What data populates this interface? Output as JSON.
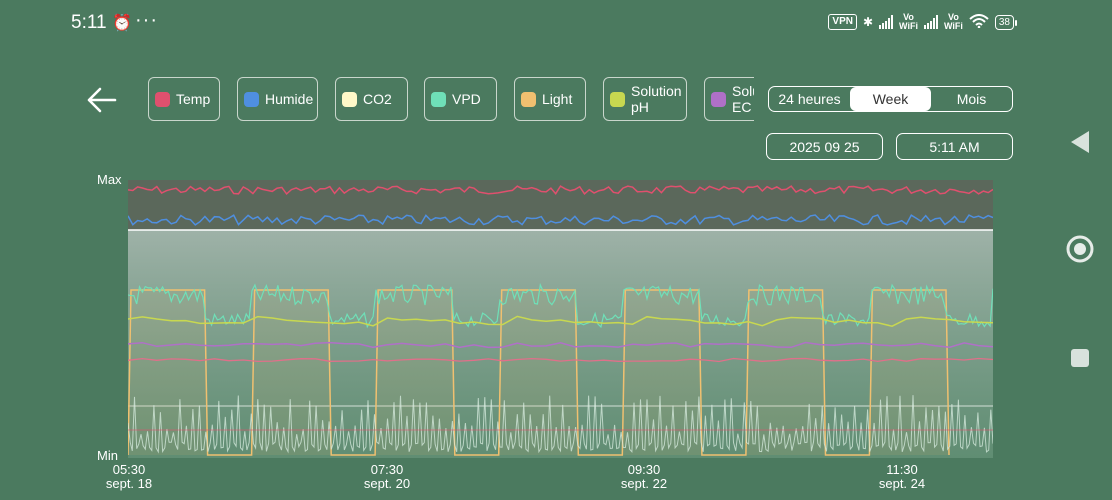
{
  "status_bar": {
    "time": "5:11",
    "alarm_icon": "alarm-icon",
    "more": "···",
    "vpn": "VPN",
    "vo_wifi_1": "Vo\nWiFi",
    "vo_wifi_2": "Vo\nWiFi",
    "battery": "38"
  },
  "legend": [
    {
      "label": "Temp",
      "color": "#e0506e"
    },
    {
      "label": "Humide",
      "color": "#4f8fe0"
    },
    {
      "label": "CO2",
      "color": "#fff8c8"
    },
    {
      "label": "VPD",
      "color": "#6fe0b8"
    },
    {
      "label": "Light",
      "color": "#f0c070"
    },
    {
      "label": "Solution pH",
      "color": "#c8d850"
    },
    {
      "label": "Solution EC",
      "color": "#b070c8"
    }
  ],
  "range": {
    "options": [
      "24 heures",
      "Week",
      "Mois"
    ],
    "selected": "Week"
  },
  "date": "2025 09 25",
  "time_picker": "5:11 AM",
  "y_axis": {
    "max_label": "Max",
    "min_label": "Min"
  },
  "x_axis": [
    {
      "time": "05:30",
      "date": "sept. 18"
    },
    {
      "time": "07:30",
      "date": "sept. 20"
    },
    {
      "time": "09:30",
      "date": "sept. 22"
    },
    {
      "time": "11:30",
      "date": "sept. 24"
    }
  ]
}
